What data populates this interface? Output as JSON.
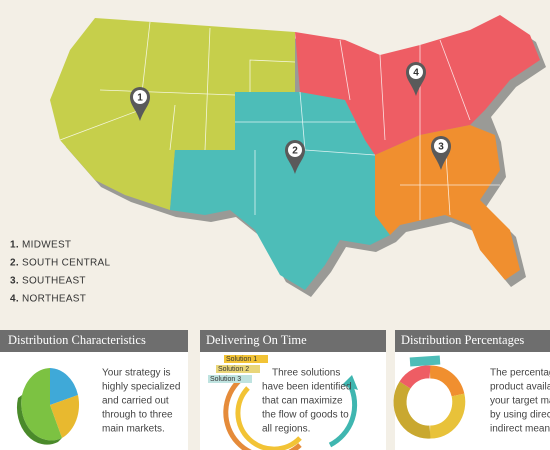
{
  "legend": [
    {
      "number": "1.",
      "name": "MIDWEST"
    },
    {
      "number": "2.",
      "name": "SOUTH CENTRAL"
    },
    {
      "number": "3.",
      "name": "SOUTHEAST"
    },
    {
      "number": "4.",
      "name": "NORTHEAST"
    }
  ],
  "pins": [
    "1",
    "2",
    "3",
    "4"
  ],
  "panels": [
    {
      "title": "Distribution Characteristics",
      "lines": [
        "Your strategy is",
        "highly specialized",
        "and carried out",
        "through to three",
        "main markets."
      ]
    },
    {
      "title": "Delivering On Time",
      "solutions": [
        "Solution 1",
        "Solution 2",
        "Solution 3"
      ],
      "lines": [
        "Three solutions",
        "have been identified",
        "that can maximize",
        "the flow of goods to",
        "all regions."
      ]
    },
    {
      "title": "Distribution Percentages",
      "lines": [
        "The percentag",
        "product availab",
        "your target ma",
        "by using direct",
        "indirect means"
      ]
    }
  ]
}
